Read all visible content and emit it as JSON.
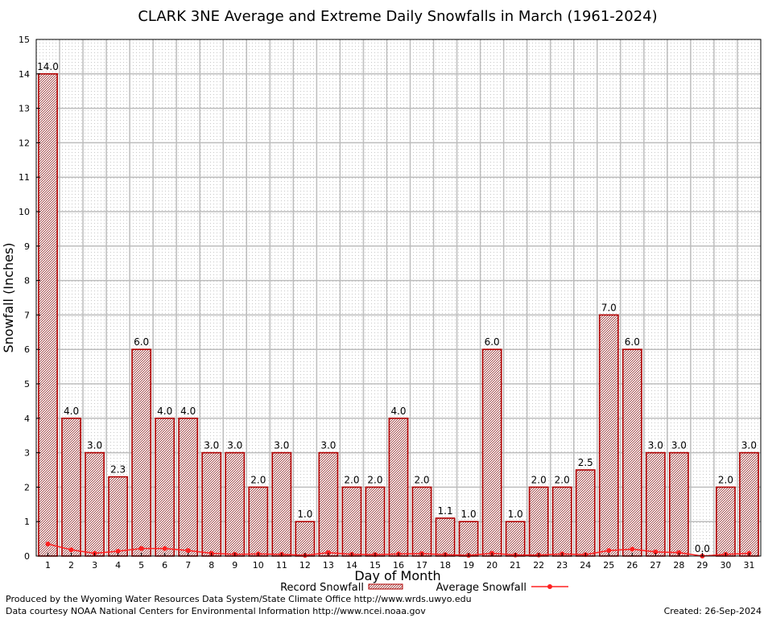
{
  "chart_data": {
    "type": "bar",
    "title": "CLARK 3NE Average and Extreme Daily Snowfalls in March (1961-2024)",
    "xlabel": "Day of Month",
    "ylabel": "Snowfall (Inches)",
    "ylim": [
      0,
      15
    ],
    "yticks": [
      "0",
      "1",
      "2",
      "3",
      "4",
      "5",
      "6",
      "7",
      "8",
      "9",
      "10",
      "11",
      "12",
      "13",
      "14",
      "15"
    ],
    "categories": [
      "1",
      "2",
      "3",
      "4",
      "5",
      "6",
      "7",
      "8",
      "9",
      "10",
      "11",
      "12",
      "13",
      "14",
      "15",
      "16",
      "17",
      "18",
      "19",
      "20",
      "21",
      "22",
      "23",
      "24",
      "25",
      "26",
      "27",
      "28",
      "29",
      "30",
      "31"
    ],
    "series": [
      {
        "name": "Record Snowfall",
        "kind": "bar",
        "values": [
          14.0,
          4.0,
          3.0,
          2.3,
          6.0,
          4.0,
          4.0,
          3.0,
          3.0,
          2.0,
          3.0,
          1.0,
          3.0,
          2.0,
          2.0,
          4.0,
          2.0,
          1.1,
          1.0,
          6.0,
          1.0,
          2.0,
          2.0,
          2.5,
          7.0,
          6.0,
          3.0,
          3.0,
          0.0,
          2.0,
          3.0
        ],
        "labels": [
          "14.0",
          "4.0",
          "3.0",
          "2.3",
          "6.0",
          "4.0",
          "4.0",
          "3.0",
          "3.0",
          "2.0",
          "3.0",
          "1.0",
          "3.0",
          "2.0",
          "2.0",
          "4.0",
          "2.0",
          "1.1",
          "1.0",
          "6.0",
          "1.0",
          "2.0",
          "2.0",
          "2.5",
          "7.0",
          "6.0",
          "3.0",
          "3.0",
          "0.0",
          "2.0",
          "3.0"
        ]
      },
      {
        "name": "Average Snowfall",
        "kind": "line",
        "values": [
          0.35,
          0.18,
          0.08,
          0.14,
          0.22,
          0.22,
          0.16,
          0.08,
          0.05,
          0.06,
          0.05,
          0.02,
          0.1,
          0.05,
          0.04,
          0.06,
          0.07,
          0.04,
          0.02,
          0.08,
          0.03,
          0.03,
          0.06,
          0.04,
          0.16,
          0.2,
          0.12,
          0.1,
          0.0,
          0.05,
          0.08
        ]
      }
    ],
    "grid": true,
    "legend": "bottom-center",
    "colors": {
      "bar_stroke": "#b00000",
      "bar_pattern": "#a06060",
      "line": "#ff2020",
      "grid": "#c0c0c0",
      "minor_grid": "#d8d8d8"
    }
  },
  "footer": {
    "credit_line_1": "Produced by the Wyoming Water Resources Data System/State Climate Office http://www.wrds.uwyo.edu",
    "credit_line_2": "Data courtesy NOAA National Centers for Environmental Information http://www.ncei.noaa.gov",
    "created": "Created:  26-Sep-2024"
  }
}
